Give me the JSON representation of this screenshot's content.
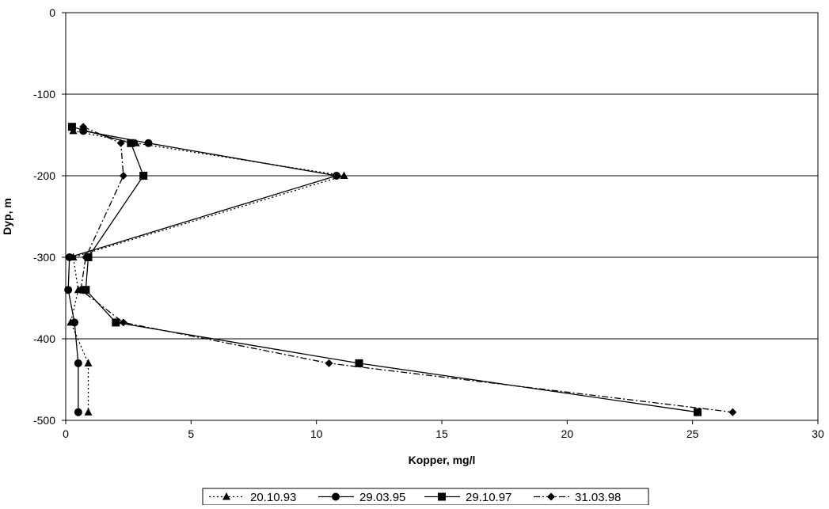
{
  "chart_data": {
    "type": "line",
    "title": "",
    "xlabel": "Kopper, mg/l",
    "ylabel": "Dyp, m",
    "xlim": [
      0,
      30
    ],
    "ylim": [
      -500,
      0
    ],
    "x_ticks": [
      0,
      5,
      10,
      15,
      20,
      25,
      30
    ],
    "y_ticks": [
      0,
      -100,
      -200,
      -300,
      -400,
      -500
    ],
    "grid": "horizontal",
    "legend_position": "bottom",
    "series": [
      {
        "name": "20.10.93",
        "marker": "triangle",
        "dash": "dotted",
        "points": [
          [
            0.3,
            -145
          ],
          [
            2.8,
            -160
          ],
          [
            11.1,
            -200
          ],
          [
            0.3,
            -300
          ],
          [
            0.5,
            -340
          ],
          [
            0.2,
            -380
          ],
          [
            0.9,
            -430
          ],
          [
            0.9,
            -490
          ]
        ]
      },
      {
        "name": "29.03.95",
        "marker": "circle",
        "dash": "solid",
        "points": [
          [
            0.7,
            -145
          ],
          [
            3.3,
            -160
          ],
          [
            10.8,
            -200
          ],
          [
            0.15,
            -300
          ],
          [
            0.1,
            -340
          ],
          [
            0.35,
            -380
          ],
          [
            0.5,
            -430
          ],
          [
            0.5,
            -490
          ]
        ]
      },
      {
        "name": "29.10.97",
        "marker": "square",
        "dash": "solid",
        "points": [
          [
            0.25,
            -140
          ],
          [
            2.6,
            -160
          ],
          [
            3.1,
            -200
          ],
          [
            0.9,
            -300
          ],
          [
            0.8,
            -340
          ],
          [
            2.0,
            -380
          ],
          [
            11.7,
            -430
          ],
          [
            25.2,
            -490
          ]
        ]
      },
      {
        "name": "31.03.98",
        "marker": "diamond",
        "dash": "dashdot",
        "points": [
          [
            0.7,
            -140
          ],
          [
            2.2,
            -160
          ],
          [
            2.3,
            -200
          ],
          [
            0.8,
            -300
          ],
          [
            0.6,
            -340
          ],
          [
            2.3,
            -380
          ],
          [
            10.5,
            -430
          ],
          [
            26.6,
            -490
          ]
        ]
      }
    ]
  }
}
